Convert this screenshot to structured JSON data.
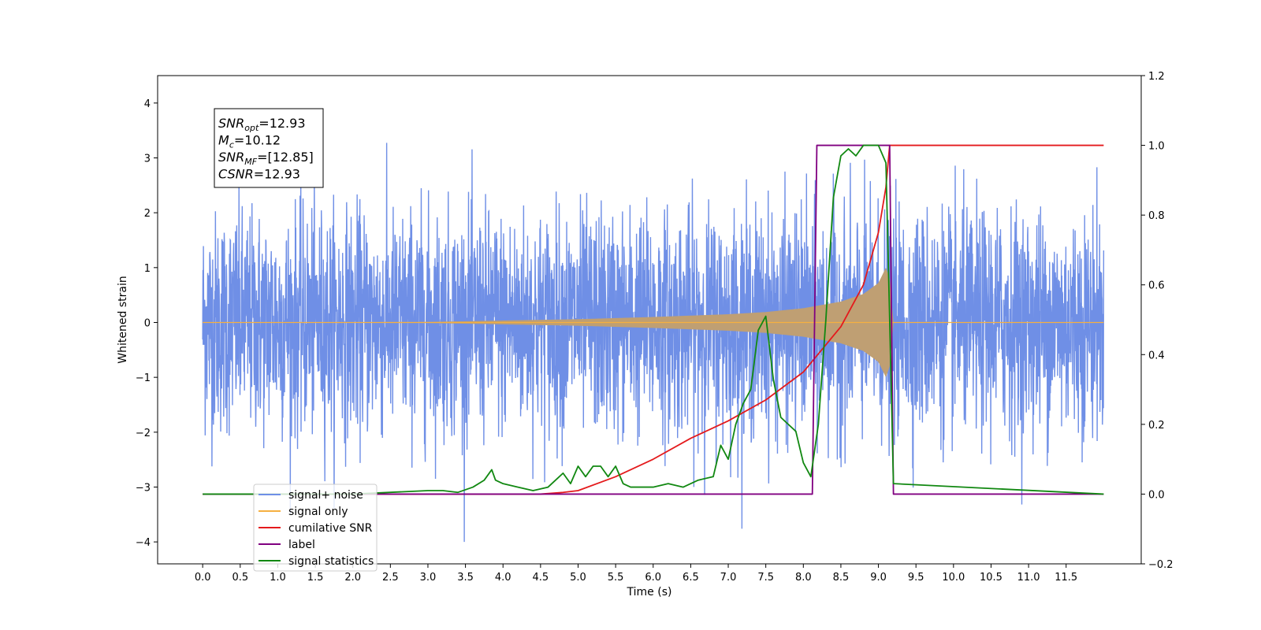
{
  "chart_data": {
    "type": "line",
    "xlabel": "Time (s)",
    "ylabel": "Whitened strain",
    "xlim": [
      -0.6,
      12.5
    ],
    "ylim": [
      -4.4,
      4.5
    ],
    "y2lim": [
      -0.2,
      1.2
    ],
    "x_ticks": [
      0.0,
      0.5,
      1.0,
      1.5,
      2.0,
      2.5,
      3.0,
      3.5,
      4.0,
      4.5,
      5.0,
      5.5,
      6.0,
      6.5,
      7.0,
      7.5,
      8.0,
      8.5,
      9.0,
      9.5,
      10.0,
      10.5,
      11.0,
      11.5
    ],
    "x_tick_labels": [
      "0.0",
      "0.5",
      "1.0",
      "1.5",
      "2.0",
      "2.5",
      "3.0",
      "3.5",
      "4.0",
      "4.5",
      "5.0",
      "5.5",
      "6.0",
      "6.5",
      "7.0",
      "7.5",
      "8.0",
      "8.5",
      "9.0",
      "9.5",
      "10.0",
      "10.5",
      "11.0",
      "11.5"
    ],
    "y_ticks": [
      -4,
      -3,
      -2,
      -1,
      0,
      1,
      2,
      3,
      4
    ],
    "y_tick_labels": [
      "−4",
      "−3",
      "−2",
      "−1",
      "0",
      "1",
      "2",
      "3",
      "4"
    ],
    "y2_ticks": [
      -0.2,
      0.0,
      0.2,
      0.4,
      0.6,
      0.8,
      1.0,
      1.2
    ],
    "y2_tick_labels": [
      "−0.2",
      "0.0",
      "0.2",
      "0.4",
      "0.6",
      "0.8",
      "1.0",
      "1.2"
    ],
    "grid": false,
    "legend_position": "lower-left",
    "annotation": {
      "lines": [
        {
          "base": "SNR",
          "sub": "opt",
          "value": "=12.93"
        },
        {
          "base": "M",
          "sub": "c",
          "value": "=10.12"
        },
        {
          "base": "SNR",
          "sub": "MF",
          "value": "=[12.85]"
        },
        {
          "base": "CSNR",
          "sub": "",
          "value": "=12.93"
        }
      ]
    },
    "series": [
      {
        "name": "signal+ noise",
        "axis": "left",
        "color": "#6f8fe6",
        "style": "noise",
        "duration": 12.0,
        "noise_amplitude": 1.0,
        "approx_range": [
          -4.0,
          4.1
        ]
      },
      {
        "name": "signal only",
        "axis": "left",
        "color": "#f5b041",
        "style": "chirp-envelope",
        "fill_color": "#bf9f73",
        "envelope": {
          "t": [
            0.0,
            3.0,
            5.0,
            6.0,
            7.0,
            7.5,
            8.0,
            8.5,
            8.8,
            9.0,
            9.1,
            9.15,
            9.2,
            12.0
          ],
          "amp": [
            0.0,
            0.01,
            0.06,
            0.1,
            0.15,
            0.19,
            0.26,
            0.38,
            0.52,
            0.72,
            1.0,
            0.8,
            0.0,
            0.0
          ]
        }
      },
      {
        "name": "cumilative SNR",
        "axis": "right",
        "color": "#e41a1c",
        "x": [
          0.0,
          4.5,
          4.8,
          5.0,
          5.5,
          6.0,
          6.5,
          7.0,
          7.5,
          8.0,
          8.5,
          8.8,
          9.0,
          9.1,
          9.15,
          9.2,
          12.0
        ],
        "y": [
          0.0,
          0.0,
          0.005,
          0.01,
          0.05,
          0.1,
          0.16,
          0.21,
          0.27,
          0.35,
          0.48,
          0.6,
          0.75,
          0.88,
          1.0,
          1.0,
          1.0
        ]
      },
      {
        "name": "label",
        "axis": "right",
        "color": "#800080",
        "x": [
          0.0,
          8.12,
          8.18,
          9.15,
          9.2,
          12.0
        ],
        "y": [
          0.0,
          0.0,
          1.0,
          1.0,
          0.0,
          0.0
        ]
      },
      {
        "name": "signal statistics",
        "axis": "right",
        "color": "#118811",
        "x": [
          0.0,
          1.0,
          2.0,
          2.5,
          3.0,
          3.2,
          3.4,
          3.6,
          3.75,
          3.85,
          3.9,
          4.0,
          4.2,
          4.4,
          4.6,
          4.7,
          4.8,
          4.9,
          5.0,
          5.1,
          5.2,
          5.3,
          5.4,
          5.5,
          5.6,
          5.7,
          5.8,
          6.0,
          6.2,
          6.4,
          6.6,
          6.8,
          6.9,
          7.0,
          7.1,
          7.2,
          7.3,
          7.4,
          7.5,
          7.6,
          7.7,
          7.8,
          7.9,
          8.0,
          8.1,
          8.2,
          8.3,
          8.4,
          8.5,
          8.6,
          8.7,
          8.8,
          9.0,
          9.1,
          9.15,
          9.2,
          12.0
        ],
        "y": [
          0.0,
          0.0,
          0.0,
          0.005,
          0.01,
          0.01,
          0.005,
          0.02,
          0.04,
          0.07,
          0.04,
          0.03,
          0.02,
          0.01,
          0.02,
          0.04,
          0.06,
          0.03,
          0.08,
          0.05,
          0.08,
          0.08,
          0.05,
          0.08,
          0.03,
          0.02,
          0.02,
          0.02,
          0.03,
          0.02,
          0.04,
          0.05,
          0.14,
          0.1,
          0.2,
          0.26,
          0.3,
          0.47,
          0.51,
          0.33,
          0.22,
          0.2,
          0.18,
          0.09,
          0.05,
          0.2,
          0.5,
          0.85,
          0.97,
          0.99,
          0.97,
          1.0,
          1.0,
          0.95,
          0.5,
          0.03,
          0.0
        ]
      }
    ]
  }
}
